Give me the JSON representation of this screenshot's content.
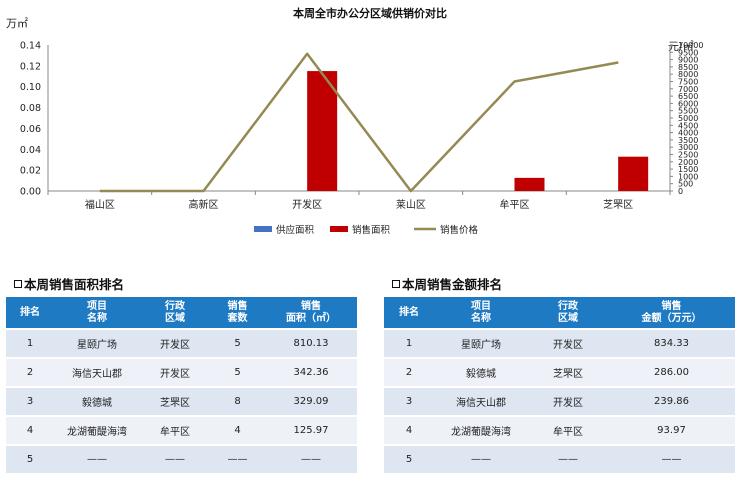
{
  "chart_data": {
    "type": "bar",
    "title": "本周全市办公分区域供销价对比",
    "ylabel_left": "万㎡",
    "ylabel_right": "元/㎡",
    "categories": [
      "福山区",
      "高新区",
      "开发区",
      "莱山区",
      "牟平区",
      "芝罘区"
    ],
    "left_axis_ticks": [
      "0.00",
      "0.02",
      "0.04",
      "0.06",
      "0.08",
      "0.10",
      "0.12",
      "0.14"
    ],
    "right_axis_ticks": [
      "0",
      "500",
      "1000",
      "1500",
      "2000",
      "2500",
      "3000",
      "3500",
      "4000",
      "4500",
      "5000",
      "5500",
      "6000",
      "6500",
      "7000",
      "7500",
      "8000",
      "8500",
      "9000",
      "9500",
      "10000"
    ],
    "ylim_left": [
      0,
      0.14
    ],
    "ylim_right": [
      0,
      10000
    ],
    "series": [
      {
        "name": "供应面积",
        "type": "bar",
        "axis": "left",
        "color": "#4472c4",
        "values": [
          0,
          0,
          0,
          0,
          0,
          0
        ]
      },
      {
        "name": "销售面积",
        "type": "bar",
        "axis": "left",
        "color": "#c00000",
        "values": [
          0,
          0,
          0.115,
          0,
          0.0126,
          0.0329
        ]
      },
      {
        "name": "销售价格",
        "type": "line",
        "axis": "right",
        "color": "#948a54",
        "values": [
          0,
          0,
          9400,
          0,
          7500,
          8800
        ]
      }
    ],
    "legend_position": "bottom"
  },
  "area_ranking": {
    "title": "本周销售面积排名",
    "headers": [
      [
        "排名"
      ],
      [
        "项目",
        "名称"
      ],
      [
        "行政",
        "区域"
      ],
      [
        "销售",
        "套数"
      ],
      [
        "销售",
        "面积（㎡）"
      ]
    ],
    "rows": [
      [
        "1",
        "星颐广场",
        "开发区",
        "5",
        "810.13"
      ],
      [
        "2",
        "海信天山郡",
        "开发区",
        "5",
        "342.36"
      ],
      [
        "3",
        "毅德城",
        "芝罘区",
        "8",
        "329.09"
      ],
      [
        "4",
        "龙湖葡醍海湾",
        "牟平区",
        "4",
        "125.97"
      ],
      [
        "5",
        "——",
        "——",
        "——",
        "——"
      ]
    ]
  },
  "amount_ranking": {
    "title": "本周销售金额排名",
    "headers": [
      [
        "排名"
      ],
      [
        "项目",
        "名称"
      ],
      [
        "行政",
        "区域"
      ],
      [
        "销售",
        "金额（万元）"
      ]
    ],
    "rows": [
      [
        "1",
        "星颐广场",
        "开发区",
        "834.33"
      ],
      [
        "2",
        "毅德城",
        "芝罘区",
        "286.00"
      ],
      [
        "3",
        "海信天山郡",
        "开发区",
        "239.86"
      ],
      [
        "4",
        "龙湖葡醍海湾",
        "牟平区",
        "93.97"
      ],
      [
        "5",
        "——",
        "——",
        "——"
      ]
    ]
  }
}
